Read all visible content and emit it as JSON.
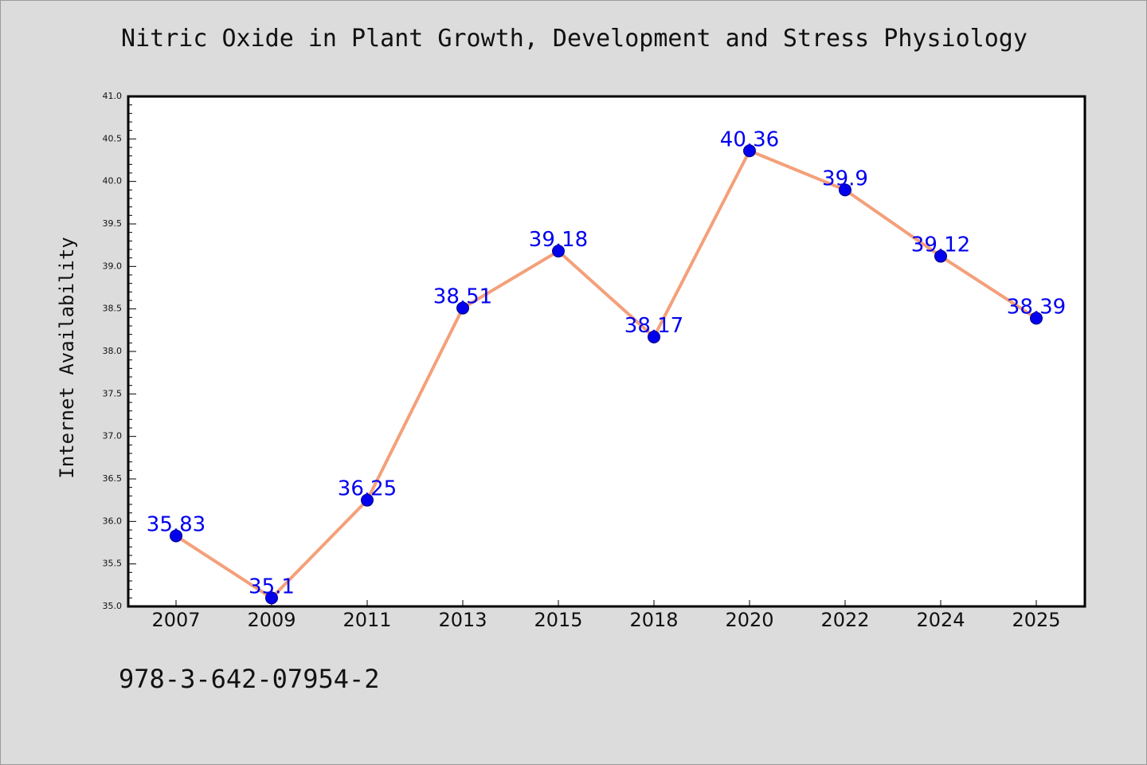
{
  "colors": {
    "figure_background": "#dcdcdc",
    "plot_background": "#ffffff",
    "line": "#f4a07a",
    "marker": "#0000ee",
    "data_label": "#0000ee"
  },
  "footer": {
    "isbn": "978-3-642-07954-2"
  },
  "chart_data": {
    "type": "line",
    "title": "Nitric Oxide in Plant Growth, Development and Stress Physiology",
    "xlabel": "",
    "ylabel": "Internet Availability",
    "categories": [
      "2007",
      "2009",
      "2011",
      "2013",
      "2015",
      "2018",
      "2020",
      "2022",
      "2024",
      "2025"
    ],
    "series": [
      {
        "values": [
          35.83,
          35.1,
          36.25,
          38.51,
          39.18,
          38.17,
          40.36,
          39.9,
          39.12,
          38.39
        ],
        "labels": [
          "35.83",
          "35.1",
          "36.25",
          "38.51",
          "39.18",
          "38.17",
          "40.36",
          "39.9",
          "39.12",
          "38.39"
        ]
      }
    ],
    "ylim": [
      35.0,
      41.0
    ],
    "yticks": [
      "35.0",
      "35.5",
      "36.0",
      "36.5",
      "37.0",
      "37.5",
      "38.0",
      "38.5",
      "39.0",
      "39.5",
      "40.0",
      "40.5",
      "41.0"
    ],
    "marker": "circle",
    "data_labels": true,
    "grid": false,
    "legend": "none"
  }
}
